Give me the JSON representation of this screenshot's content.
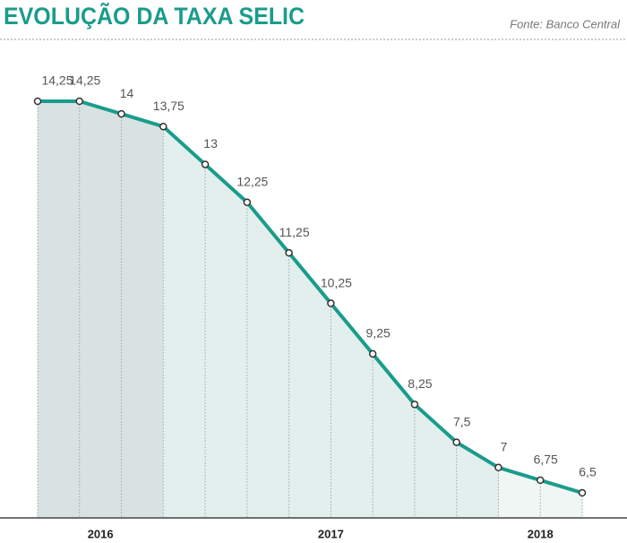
{
  "chart_data": {
    "type": "line",
    "title": "EVOLUÇÃO DA TAXA SELIC",
    "source": "Fonte: Banco Central",
    "categories": [
      null,
      null,
      null,
      null,
      null,
      null,
      null,
      null,
      null,
      null,
      null,
      null,
      null,
      null
    ],
    "values": [
      14.25,
      14.25,
      14,
      13.75,
      13,
      12.25,
      11.25,
      10.25,
      9.25,
      8.25,
      7.5,
      7,
      6.75,
      6.5
    ],
    "value_labels": [
      "14,25",
      "14,25",
      "14",
      "13,75",
      "13",
      "12,25",
      "11,25",
      "10,25",
      "9,25",
      "8,25",
      "7,5",
      "7",
      "6,75",
      "6,5"
    ],
    "color": "#1a9c8b",
    "periods": [
      {
        "label": "2016",
        "intervals": 3,
        "color": "#d9e2e2"
      },
      {
        "label": "2017",
        "intervals": 8,
        "color": "#e2efec"
      },
      {
        "label": "2018",
        "intervals": 2,
        "color": "#f0f6f4"
      }
    ]
  }
}
